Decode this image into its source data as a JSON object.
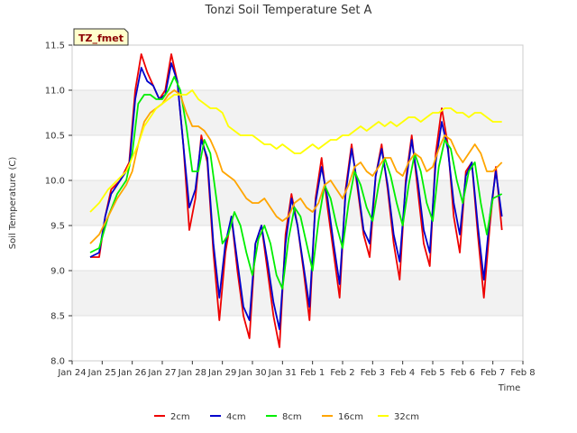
{
  "chart_data": {
    "type": "line",
    "title": "Tonzi Soil Temperature Set A",
    "xlabel": "Time",
    "ylabel": "Soil Temperature (C)",
    "xlim": [
      0,
      15
    ],
    "ylim": [
      8.0,
      11.5
    ],
    "x_tick_values": [
      0,
      1,
      2,
      3,
      4,
      5,
      6,
      7,
      8,
      9,
      10,
      11,
      12,
      13,
      14,
      15
    ],
    "x_tick_labels": [
      "Jan 24",
      "Jan 25",
      "Jan 26",
      "Jan 27",
      "Jan 28",
      "Jan 29",
      "Jan 30",
      "Jan 31",
      "Feb 1",
      "Feb 2",
      "Feb 3",
      "Feb 4",
      "Feb 5",
      "Feb 6",
      "Feb 7",
      "Feb 8"
    ],
    "y_ticks": [
      8.0,
      8.5,
      9.0,
      9.5,
      10.0,
      10.5,
      11.0,
      11.5
    ],
    "y_tick_labels": [
      "8.0",
      "8.5",
      "9.0",
      "9.5",
      "10.0",
      "10.5",
      "11.0",
      "11.5"
    ],
    "badge_label": "TZ_fmet",
    "legend_position": "bottom-center",
    "series": [
      {
        "name": "2cm",
        "color": "#ee0000",
        "x": [
          0.6,
          0.9,
          1.1,
          1.3,
          1.6,
          1.9,
          2.1,
          2.3,
          2.5,
          2.7,
          2.9,
          3.1,
          3.3,
          3.5,
          3.7,
          3.9,
          4.1,
          4.3,
          4.5,
          4.7,
          4.9,
          5.1,
          5.3,
          5.5,
          5.7,
          5.9,
          6.1,
          6.3,
          6.5,
          6.7,
          6.9,
          7.1,
          7.3,
          7.5,
          7.7,
          7.9,
          8.1,
          8.3,
          8.5,
          8.7,
          8.9,
          9.1,
          9.3,
          9.5,
          9.7,
          9.9,
          10.1,
          10.3,
          10.5,
          10.7,
          10.9,
          11.1,
          11.3,
          11.5,
          11.7,
          11.9,
          12.1,
          12.3,
          12.5,
          12.7,
          12.9,
          13.1,
          13.3,
          13.5,
          13.7,
          13.9,
          14.1,
          14.3
        ],
        "values": [
          9.15,
          9.15,
          9.6,
          9.9,
          10.0,
          10.2,
          11.0,
          11.4,
          11.2,
          11.05,
          10.9,
          11.0,
          11.4,
          11.1,
          10.4,
          9.45,
          9.8,
          10.5,
          10.2,
          9.2,
          8.45,
          9.2,
          9.6,
          9.0,
          8.5,
          8.25,
          9.3,
          9.5,
          9.0,
          8.5,
          8.15,
          9.4,
          9.85,
          9.5,
          9.0,
          8.45,
          9.8,
          10.25,
          9.7,
          9.2,
          8.7,
          9.9,
          10.4,
          9.9,
          9.4,
          9.15,
          10.05,
          10.4,
          9.9,
          9.3,
          8.9,
          10.0,
          10.5,
          9.9,
          9.3,
          9.05,
          10.3,
          10.8,
          10.4,
          9.6,
          9.2,
          10.1,
          10.2,
          9.4,
          8.7,
          9.5,
          10.15,
          9.45
        ]
      },
      {
        "name": "4cm",
        "color": "#0000cc",
        "x": [
          0.6,
          0.9,
          1.1,
          1.3,
          1.6,
          1.9,
          2.1,
          2.3,
          2.5,
          2.7,
          2.9,
          3.1,
          3.3,
          3.5,
          3.7,
          3.9,
          4.1,
          4.3,
          4.5,
          4.7,
          4.9,
          5.1,
          5.3,
          5.5,
          5.7,
          5.9,
          6.1,
          6.3,
          6.5,
          6.7,
          6.9,
          7.1,
          7.3,
          7.5,
          7.7,
          7.9,
          8.1,
          8.3,
          8.5,
          8.7,
          8.9,
          9.1,
          9.3,
          9.5,
          9.7,
          9.9,
          10.1,
          10.3,
          10.5,
          10.7,
          10.9,
          11.1,
          11.3,
          11.5,
          11.7,
          11.9,
          12.1,
          12.3,
          12.5,
          12.7,
          12.9,
          13.1,
          13.3,
          13.5,
          13.7,
          13.9,
          14.1,
          14.3
        ],
        "values": [
          9.15,
          9.2,
          9.6,
          9.85,
          10.0,
          10.15,
          10.9,
          11.25,
          11.1,
          11.05,
          10.9,
          10.95,
          11.3,
          11.1,
          10.4,
          9.7,
          9.9,
          10.45,
          10.25,
          9.3,
          8.7,
          9.3,
          9.6,
          9.1,
          8.6,
          8.45,
          9.3,
          9.5,
          9.1,
          8.65,
          8.35,
          9.3,
          9.8,
          9.5,
          9.05,
          8.6,
          9.75,
          10.15,
          9.8,
          9.3,
          8.85,
          9.85,
          10.35,
          9.95,
          9.45,
          9.3,
          10.05,
          10.35,
          9.95,
          9.4,
          9.1,
          9.95,
          10.45,
          10.0,
          9.45,
          9.2,
          10.2,
          10.65,
          10.35,
          9.75,
          9.4,
          10.05,
          10.2,
          9.5,
          8.9,
          9.6,
          10.1,
          9.6
        ]
      },
      {
        "name": "8cm",
        "color": "#00ee00",
        "x": [
          0.6,
          0.9,
          1.2,
          1.5,
          1.8,
          2.0,
          2.2,
          2.4,
          2.6,
          2.8,
          3.0,
          3.2,
          3.4,
          3.6,
          3.8,
          4.0,
          4.2,
          4.4,
          4.6,
          4.8,
          5.0,
          5.2,
          5.4,
          5.6,
          5.8,
          6.0,
          6.2,
          6.4,
          6.6,
          6.8,
          7.0,
          7.2,
          7.4,
          7.6,
          7.8,
          8.0,
          8.2,
          8.4,
          8.6,
          8.8,
          9.0,
          9.2,
          9.4,
          9.6,
          9.8,
          10.0,
          10.2,
          10.4,
          10.6,
          10.8,
          11.0,
          11.2,
          11.4,
          11.6,
          11.8,
          12.0,
          12.2,
          12.4,
          12.6,
          12.8,
          13.0,
          13.2,
          13.4,
          13.6,
          13.8,
          14.0,
          14.3
        ],
        "values": [
          9.2,
          9.25,
          9.6,
          9.85,
          10.0,
          10.3,
          10.85,
          10.95,
          10.95,
          10.9,
          10.9,
          11.0,
          11.15,
          11.0,
          10.6,
          10.1,
          10.1,
          10.45,
          10.3,
          9.8,
          9.3,
          9.4,
          9.65,
          9.5,
          9.2,
          8.95,
          9.35,
          9.5,
          9.3,
          8.95,
          8.8,
          9.35,
          9.7,
          9.6,
          9.3,
          9.0,
          9.55,
          9.95,
          9.8,
          9.5,
          9.25,
          9.75,
          10.1,
          9.95,
          9.7,
          9.55,
          9.95,
          10.25,
          10.05,
          9.75,
          9.5,
          9.95,
          10.3,
          10.1,
          9.75,
          9.55,
          10.15,
          10.45,
          10.35,
          10.0,
          9.75,
          10.1,
          10.2,
          9.75,
          9.4,
          9.8,
          9.85
        ]
      },
      {
        "name": "16cm",
        "color": "#ffa500",
        "x": [
          0.6,
          0.9,
          1.2,
          1.5,
          1.8,
          2.0,
          2.2,
          2.4,
          2.6,
          2.8,
          3.0,
          3.2,
          3.4,
          3.6,
          3.8,
          4.0,
          4.2,
          4.4,
          4.6,
          4.8,
          5.0,
          5.2,
          5.4,
          5.6,
          5.8,
          6.0,
          6.2,
          6.4,
          6.6,
          6.8,
          7.0,
          7.2,
          7.4,
          7.6,
          7.8,
          8.0,
          8.2,
          8.4,
          8.6,
          8.8,
          9.0,
          9.2,
          9.4,
          9.6,
          9.8,
          10.0,
          10.2,
          10.4,
          10.6,
          10.8,
          11.0,
          11.2,
          11.4,
          11.6,
          11.8,
          12.0,
          12.2,
          12.4,
          12.6,
          12.8,
          13.0,
          13.2,
          13.4,
          13.6,
          13.8,
          14.0,
          14.3
        ],
        "values": [
          9.3,
          9.4,
          9.6,
          9.8,
          9.95,
          10.1,
          10.4,
          10.65,
          10.75,
          10.8,
          10.85,
          10.95,
          11.0,
          10.95,
          10.75,
          10.6,
          10.6,
          10.55,
          10.45,
          10.3,
          10.1,
          10.05,
          10.0,
          9.9,
          9.8,
          9.75,
          9.75,
          9.8,
          9.7,
          9.6,
          9.55,
          9.6,
          9.75,
          9.8,
          9.7,
          9.65,
          9.75,
          9.95,
          10.0,
          9.9,
          9.8,
          9.95,
          10.15,
          10.2,
          10.1,
          10.05,
          10.15,
          10.25,
          10.25,
          10.1,
          10.05,
          10.2,
          10.3,
          10.25,
          10.1,
          10.15,
          10.35,
          10.5,
          10.45,
          10.3,
          10.2,
          10.3,
          10.4,
          10.3,
          10.1,
          10.1,
          10.2
        ]
      },
      {
        "name": "32cm",
        "color": "#ffff00",
        "x": [
          0.6,
          0.9,
          1.2,
          1.5,
          1.8,
          2.0,
          2.2,
          2.4,
          2.6,
          2.8,
          3.0,
          3.2,
          3.4,
          3.6,
          3.8,
          4.0,
          4.2,
          4.4,
          4.6,
          4.8,
          5.0,
          5.2,
          5.4,
          5.6,
          5.8,
          6.0,
          6.2,
          6.4,
          6.6,
          6.8,
          7.0,
          7.2,
          7.4,
          7.6,
          7.8,
          8.0,
          8.2,
          8.4,
          8.6,
          8.8,
          9.0,
          9.2,
          9.4,
          9.6,
          9.8,
          10.0,
          10.2,
          10.4,
          10.6,
          10.8,
          11.0,
          11.2,
          11.4,
          11.6,
          11.8,
          12.0,
          12.2,
          12.4,
          12.6,
          12.8,
          13.0,
          13.2,
          13.4,
          13.6,
          13.8,
          14.0,
          14.3
        ],
        "values": [
          9.65,
          9.75,
          9.9,
          10.0,
          10.1,
          10.25,
          10.4,
          10.6,
          10.7,
          10.8,
          10.85,
          10.9,
          10.95,
          10.95,
          10.95,
          11.0,
          10.9,
          10.85,
          10.8,
          10.8,
          10.75,
          10.6,
          10.55,
          10.5,
          10.5,
          10.5,
          10.45,
          10.4,
          10.4,
          10.35,
          10.4,
          10.35,
          10.3,
          10.3,
          10.35,
          10.4,
          10.35,
          10.4,
          10.45,
          10.45,
          10.5,
          10.5,
          10.55,
          10.6,
          10.55,
          10.6,
          10.65,
          10.6,
          10.65,
          10.6,
          10.65,
          10.7,
          10.7,
          10.65,
          10.7,
          10.75,
          10.75,
          10.8,
          10.8,
          10.75,
          10.75,
          10.7,
          10.75,
          10.75,
          10.7,
          10.65,
          10.65
        ]
      }
    ]
  }
}
